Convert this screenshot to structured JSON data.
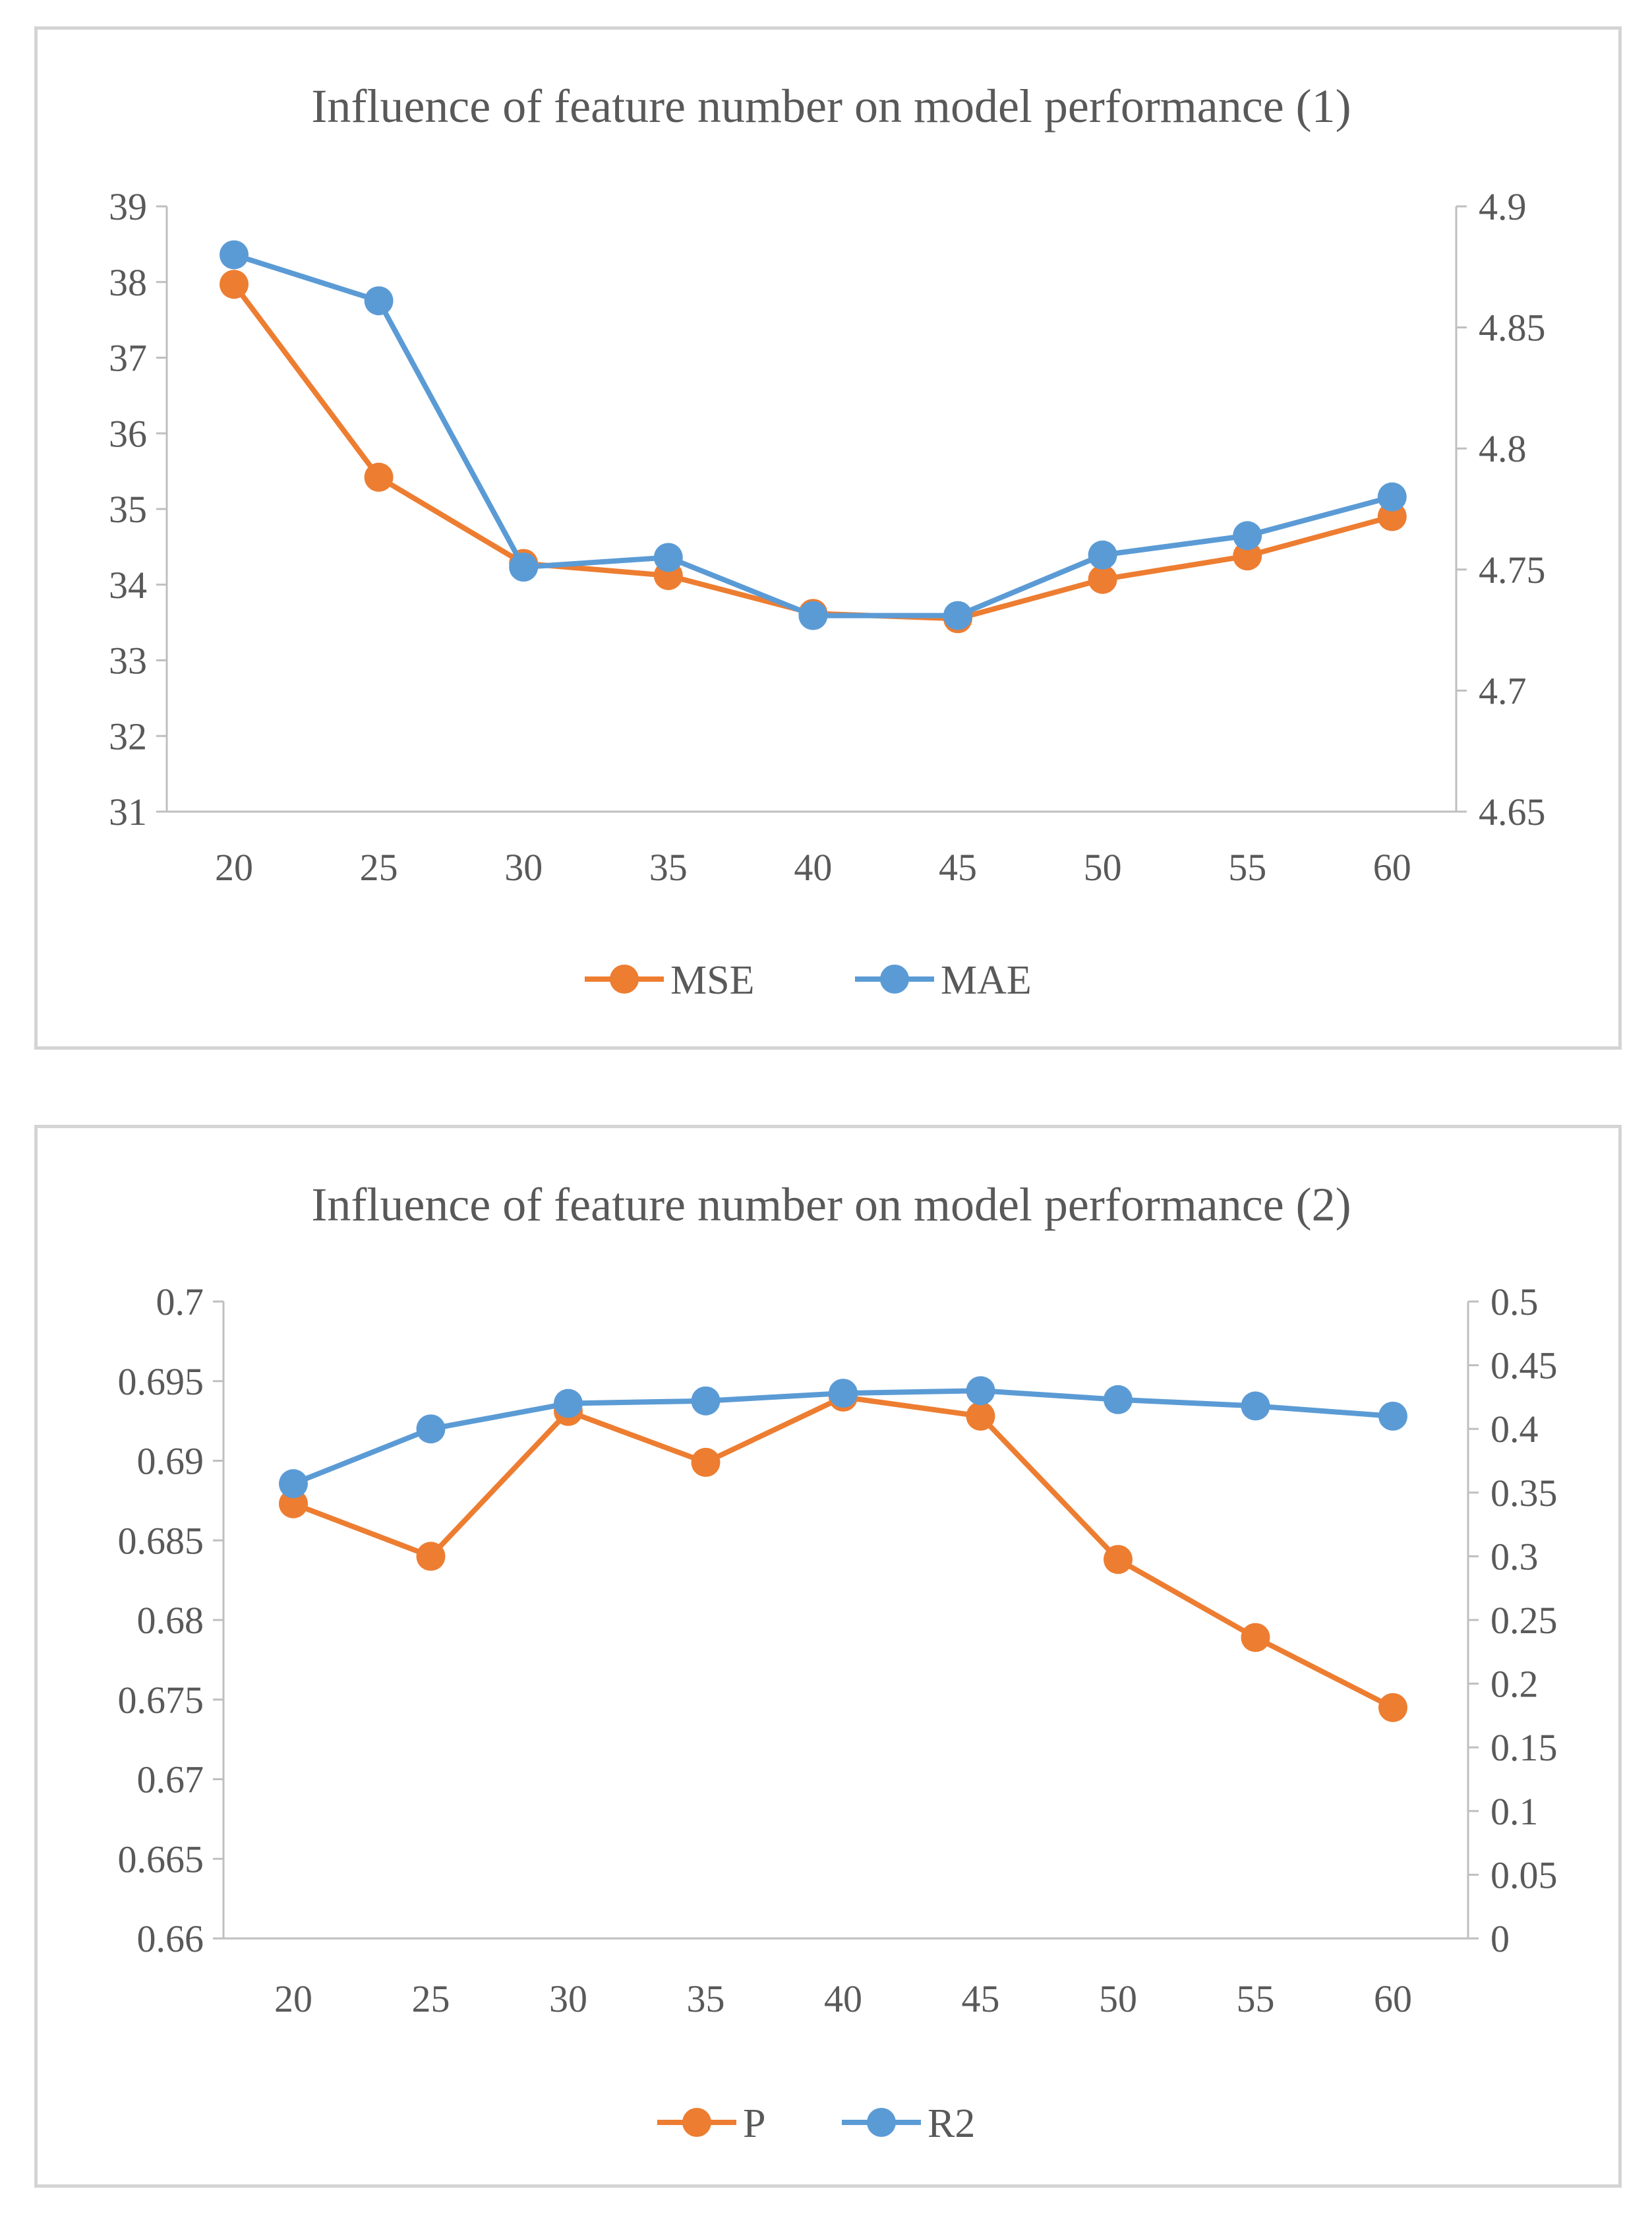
{
  "chart_data": [
    {
      "type": "line",
      "title": "Influence of feature number on model performance (1)",
      "categories": [
        "20",
        "25",
        "30",
        "35",
        "40",
        "45",
        "50",
        "55",
        "60"
      ],
      "left_axis": {
        "min": 31,
        "max": 39,
        "step": 1,
        "tick_labels": [
          "31",
          "32",
          "33",
          "34",
          "35",
          "36",
          "37",
          "38",
          "39"
        ]
      },
      "right_axis": {
        "min": 4.65,
        "max": 4.9,
        "step": 0.05,
        "tick_labels": [
          "4.65",
          "4.7",
          "4.75",
          "4.8",
          "4.85",
          "4.9"
        ]
      },
      "series": [
        {
          "name": "MSE",
          "axis": "left",
          "color": "#ED7D31",
          "values": [
            37.97,
            35.42,
            34.28,
            34.12,
            33.62,
            33.55,
            34.07,
            34.38,
            34.9
          ]
        },
        {
          "name": "MAE",
          "axis": "right",
          "color": "#5B9BD5",
          "values": [
            4.88,
            4.861,
            4.751,
            4.755,
            4.731,
            4.731,
            4.756,
            4.764,
            4.78
          ]
        }
      ],
      "legend": "bottom"
    },
    {
      "type": "line",
      "title": "Influence of feature number on model performance (2)",
      "categories": [
        "20",
        "25",
        "30",
        "35",
        "40",
        "45",
        "50",
        "55",
        "60"
      ],
      "left_axis": {
        "min": 0.66,
        "max": 0.7,
        "step": 0.005,
        "tick_labels": [
          "0.66",
          "0.665",
          "0.67",
          "0.675",
          "0.68",
          "0.685",
          "0.69",
          "0.695",
          "0.7"
        ]
      },
      "right_axis": {
        "min": 0,
        "max": 0.5,
        "step": 0.05,
        "tick_labels": [
          "0",
          "0.05",
          "0.1",
          "0.15",
          "0.2",
          "0.25",
          "0.3",
          "0.35",
          "0.4",
          "0.45",
          "0.5"
        ]
      },
      "series": [
        {
          "name": "P",
          "axis": "left",
          "color": "#ED7D31",
          "values": [
            0.6873,
            0.684,
            0.6931,
            0.6899,
            0.694,
            0.6928,
            0.6838,
            0.6789,
            0.6745
          ]
        },
        {
          "name": "R2",
          "axis": "right",
          "color": "#5B9BD5",
          "values": [
            0.357,
            0.4,
            0.42,
            0.422,
            0.428,
            0.43,
            0.423,
            0.418,
            0.41
          ]
        }
      ],
      "legend": "bottom"
    }
  ]
}
